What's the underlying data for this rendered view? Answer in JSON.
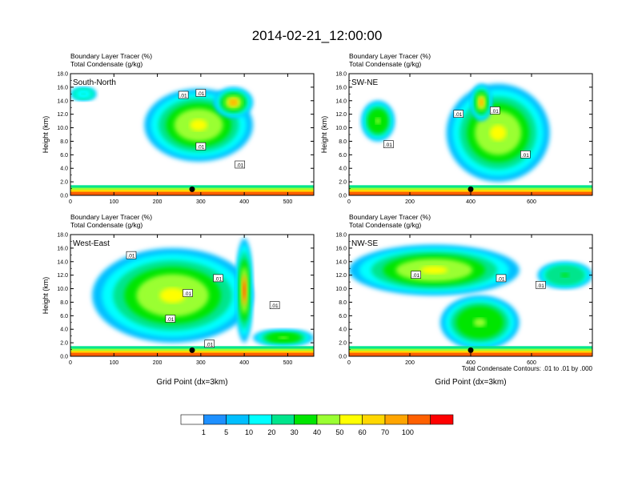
{
  "title": "2014-02-21_12:00:00",
  "footnote": "Total Condensate Contours: .01 to .01 by .000",
  "shared": {
    "ylabel": "Height (km)",
    "xlabel": "Grid Point (dx=3km)",
    "field_left": "Boundary Layer Tracer",
    "field_left_unit": "(%)",
    "field_right": "Total Condensate",
    "field_right_unit": "(g/kg)",
    "contour_label": ".01"
  },
  "colorbar": {
    "labels": [
      "1",
      "5",
      "10",
      "20",
      "30",
      "40",
      "50",
      "60",
      "70",
      "100"
    ],
    "colors": [
      "#ffffff",
      "#1e90ff",
      "#00bfff",
      "#00ffff",
      "#00e58c",
      "#00e600",
      "#9aff32",
      "#ffff00",
      "#ffd700",
      "#ffa500",
      "#ff6000",
      "#ff0000"
    ]
  },
  "chart_data": [
    {
      "type": "heatmap",
      "cross_section": "South-North",
      "xlim": [
        0,
        560
      ],
      "ylim": [
        0,
        18
      ],
      "xticks": [
        0,
        100,
        200,
        300,
        400,
        500
      ],
      "yticks": [
        0.0,
        2.0,
        4.0,
        6.0,
        8.0,
        10.0,
        12.0,
        14.0,
        16.0,
        18.0
      ],
      "xlabel": "",
      "ylabel": "Height (km)",
      "marker": {
        "x": 280,
        "y": 0.9
      },
      "contour_labels": [
        {
          "x": 300,
          "y": 15.1
        },
        {
          "x": 260,
          "y": 14.8
        },
        {
          "x": 300,
          "y": 7.2
        },
        {
          "x": 390,
          "y": 4.5
        }
      ],
      "features": [
        {
          "type": "cloud",
          "x": [
            170,
            420
          ],
          "y": [
            5.0,
            15.8
          ],
          "intensity": 35
        },
        {
          "type": "core",
          "x": [
            330,
            420
          ],
          "y": [
            11.5,
            16.0
          ],
          "intensity": 55
        },
        {
          "type": "anvil",
          "x": [
            0,
            60
          ],
          "y": [
            14.0,
            16.0
          ],
          "intensity": 5
        },
        {
          "type": "boundary_layer",
          "x": [
            0,
            560
          ],
          "y": [
            0.0,
            1.5
          ],
          "intensity": 70
        }
      ]
    },
    {
      "type": "heatmap",
      "cross_section": "SW-NE",
      "xlim": [
        0,
        800
      ],
      "ylim": [
        0,
        18
      ],
      "xticks": [
        0,
        200,
        400,
        600
      ],
      "yticks": [
        0.0,
        2.0,
        4.0,
        6.0,
        8.0,
        10.0,
        12.0,
        14.0,
        16.0,
        18.0
      ],
      "xlabel": "",
      "ylabel": "Height (km)",
      "marker": {
        "x": 400,
        "y": 0.9
      },
      "contour_labels": [
        {
          "x": 360,
          "y": 12.0
        },
        {
          "x": 480,
          "y": 12.5
        },
        {
          "x": 130,
          "y": 7.5
        },
        {
          "x": 580,
          "y": 6.0
        }
      ],
      "features": [
        {
          "type": "cloud",
          "x": [
            320,
            660
          ],
          "y": [
            2.0,
            16.5
          ],
          "intensity": 35
        },
        {
          "type": "core",
          "x": [
            400,
            470
          ],
          "y": [
            11.0,
            16.5
          ],
          "intensity": 55
        },
        {
          "type": "cloud",
          "x": [
            40,
            150
          ],
          "y": [
            8.0,
            14.0
          ],
          "intensity": 25
        },
        {
          "type": "boundary_layer",
          "x": [
            0,
            800
          ],
          "y": [
            0.0,
            1.5
          ],
          "intensity": 70
        }
      ]
    },
    {
      "type": "heatmap",
      "cross_section": "West-East",
      "xlim": [
        0,
        560
      ],
      "ylim": [
        0,
        18
      ],
      "xticks": [
        0,
        100,
        200,
        300,
        400,
        500
      ],
      "yticks": [
        0.0,
        2.0,
        4.0,
        6.0,
        8.0,
        10.0,
        12.0,
        14.0,
        16.0,
        18.0
      ],
      "xlabel": "Grid Point (dx=3km)",
      "ylabel": "Height (km)",
      "marker": {
        "x": 280,
        "y": 0.9
      },
      "contour_labels": [
        {
          "x": 140,
          "y": 14.9
        },
        {
          "x": 340,
          "y": 11.5
        },
        {
          "x": 270,
          "y": 9.3
        },
        {
          "x": 230,
          "y": 5.5
        },
        {
          "x": 470,
          "y": 7.5
        },
        {
          "x": 320,
          "y": 1.8
        }
      ],
      "features": [
        {
          "type": "cloud",
          "x": [
            50,
            420
          ],
          "y": [
            2.0,
            16.0
          ],
          "intensity": 35
        },
        {
          "type": "core",
          "x": [
            380,
            420
          ],
          "y": [
            2.0,
            17.5
          ],
          "intensity": 65
        },
        {
          "type": "cloud",
          "x": [
            420,
            560
          ],
          "y": [
            1.5,
            4.0
          ],
          "intensity": 20
        },
        {
          "type": "boundary_layer",
          "x": [
            0,
            560
          ],
          "y": [
            0.0,
            1.5
          ],
          "intensity": 70
        }
      ]
    },
    {
      "type": "heatmap",
      "cross_section": "NW-SE",
      "xlim": [
        0,
        800
      ],
      "ylim": [
        0,
        18
      ],
      "xticks": [
        0,
        200,
        400,
        600
      ],
      "yticks": [
        0.0,
        2.0,
        4.0,
        6.0,
        8.0,
        10.0,
        12.0,
        14.0,
        16.0,
        18.0
      ],
      "xlabel": "Grid Point (dx=3km)",
      "ylabel": "",
      "marker": {
        "x": 400,
        "y": 0.9
      },
      "contour_labels": [
        {
          "x": 220,
          "y": 12.0
        },
        {
          "x": 500,
          "y": 11.5
        },
        {
          "x": 630,
          "y": 10.5
        }
      ],
      "features": [
        {
          "type": "cloud",
          "x": [
            0,
            560
          ],
          "y": [
            9.0,
            16.5
          ],
          "intensity": 30
        },
        {
          "type": "cloud",
          "x": [
            300,
            560
          ],
          "y": [
            1.0,
            9.0
          ],
          "intensity": 25
        },
        {
          "type": "cloud",
          "x": [
            620,
            800
          ],
          "y": [
            10.0,
            14.0
          ],
          "intensity": 15
        },
        {
          "type": "boundary_layer",
          "x": [
            0,
            800
          ],
          "y": [
            0.0,
            1.5
          ],
          "intensity": 70
        }
      ]
    }
  ]
}
